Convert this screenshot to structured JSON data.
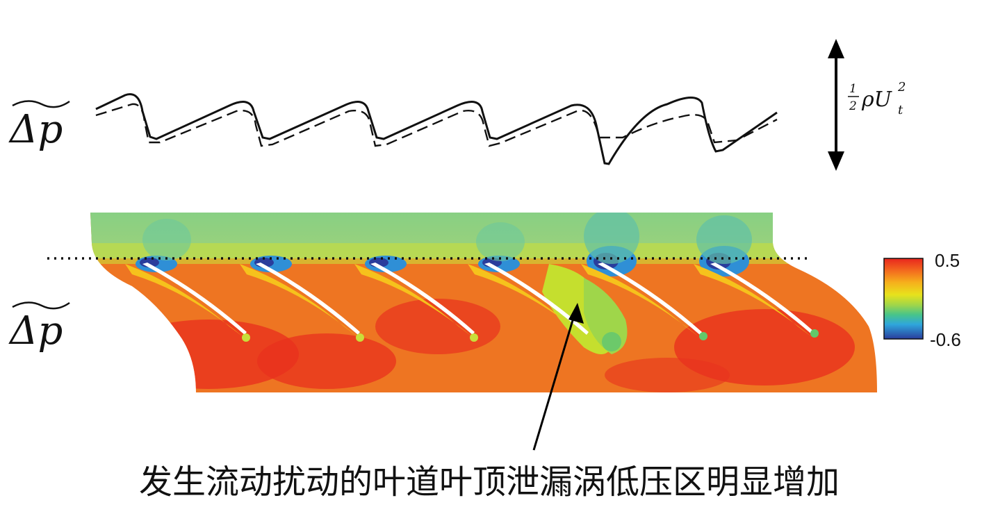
{
  "top_panel": {
    "quantity_label": "Δp",
    "scale_bar_label": "ρU",
    "scale_bar_fraction_num": "1",
    "scale_bar_fraction_den": "2",
    "scale_bar_sub": "t",
    "scale_bar_sup": "2",
    "line_styles": [
      "solid",
      "dashed"
    ]
  },
  "bottom_panel": {
    "quantity_label": "Δp",
    "colorbar": {
      "max_label": "0.5",
      "min_label": "-0.6",
      "colormap": [
        "#e8251e",
        "#f58a1e",
        "#f6d31c",
        "#c6e224",
        "#62c96a",
        "#2fb0d8",
        "#2a3d9c"
      ]
    },
    "blade_count": 6,
    "dotted_line": "tip line"
  },
  "annotation": {
    "text": "发生流动扰动的叶道叶顶泄漏涡低压区明显增加"
  },
  "colors": {
    "ink": "#111111",
    "background_field_top": "#8ccf86",
    "high": "#e8321e",
    "mid_high": "#f07a22",
    "mid": "#f6c21c",
    "low": "#2a3d9c"
  }
}
